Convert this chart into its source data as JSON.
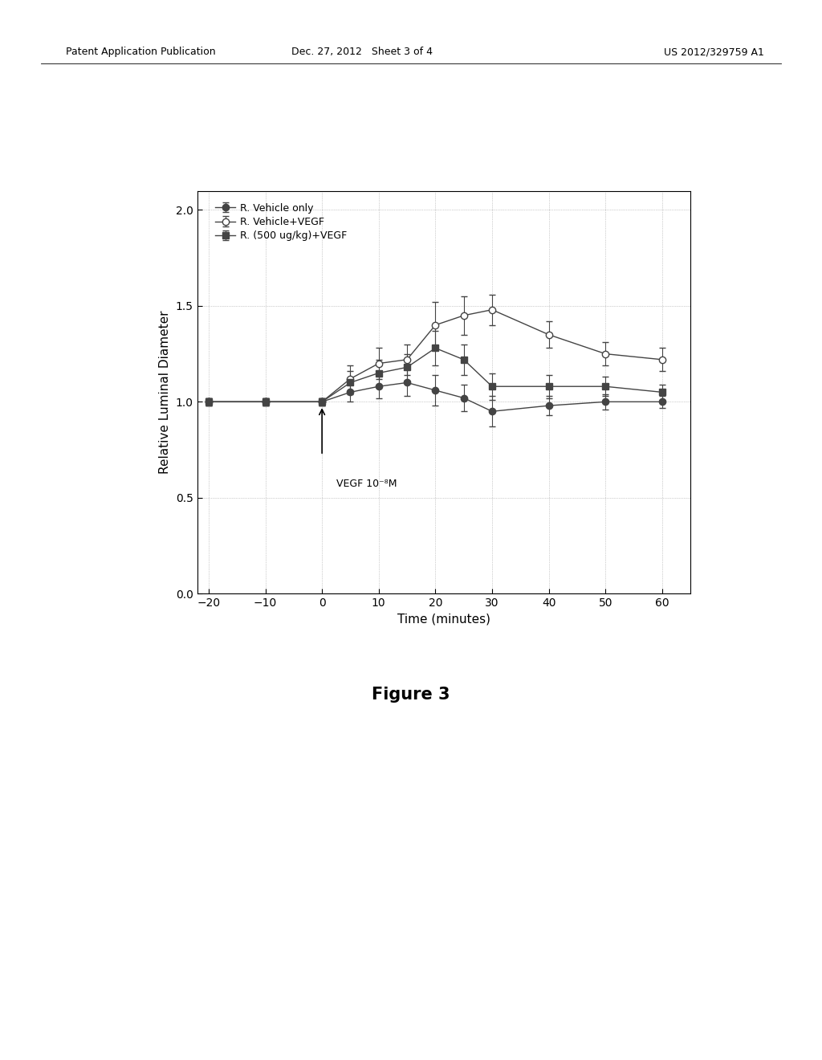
{
  "xlabel": "Time (minutes)",
  "ylabel": "Relative Luminal Diameter",
  "figure_caption": "Figure 3",
  "xlim": [
    -22,
    65
  ],
  "ylim": [
    0.0,
    2.1
  ],
  "yticks": [
    0.0,
    0.5,
    1.0,
    1.5,
    2.0
  ],
  "xticks": [
    -20,
    -10,
    0,
    10,
    20,
    30,
    40,
    50,
    60
  ],
  "annotation_text": "VEGF 10⁻⁸M",
  "series1_label": "R. Vehicle only",
  "series1_x": [
    -20,
    -10,
    0,
    5,
    10,
    15,
    20,
    25,
    30,
    40,
    50,
    60
  ],
  "series1_y": [
    1.0,
    1.0,
    1.0,
    1.05,
    1.08,
    1.1,
    1.06,
    1.02,
    0.95,
    0.98,
    1.0,
    1.0
  ],
  "series1_yerr": [
    0.02,
    0.02,
    0.02,
    0.05,
    0.06,
    0.07,
    0.08,
    0.07,
    0.08,
    0.05,
    0.04,
    0.03
  ],
  "series1_color": "#444444",
  "series1_marker": "o",
  "series1_markerfacecolor": "#444444",
  "series2_label": "R. Vehicle+VEGF",
  "series2_x": [
    -20,
    -10,
    0,
    5,
    10,
    15,
    20,
    25,
    30,
    40,
    50,
    60
  ],
  "series2_y": [
    1.0,
    1.0,
    1.0,
    1.12,
    1.2,
    1.22,
    1.4,
    1.45,
    1.48,
    1.35,
    1.25,
    1.22
  ],
  "series2_yerr": [
    0.02,
    0.02,
    0.02,
    0.07,
    0.08,
    0.08,
    0.12,
    0.1,
    0.08,
    0.07,
    0.06,
    0.06
  ],
  "series2_color": "#444444",
  "series2_marker": "o",
  "series2_markerfacecolor": "#ffffff",
  "series3_label": "R. (500 ug/kg)+VEGF",
  "series3_x": [
    -20,
    -10,
    0,
    5,
    10,
    15,
    20,
    25,
    30,
    40,
    50,
    60
  ],
  "series3_y": [
    1.0,
    1.0,
    1.0,
    1.1,
    1.15,
    1.18,
    1.28,
    1.22,
    1.08,
    1.08,
    1.08,
    1.05
  ],
  "series3_yerr": [
    0.02,
    0.02,
    0.02,
    0.06,
    0.07,
    0.07,
    0.09,
    0.08,
    0.07,
    0.06,
    0.05,
    0.04
  ],
  "series3_color": "#444444",
  "series3_marker": "s",
  "series3_markerfacecolor": "#444444",
  "background_color": "#ffffff",
  "fig_width": 10.24,
  "fig_height": 13.2,
  "dpi": 100,
  "header_left": "Patent Application Publication",
  "header_center": "Dec. 27, 2012   Sheet 3 of 4",
  "header_right": "US 2012/329759 A1"
}
